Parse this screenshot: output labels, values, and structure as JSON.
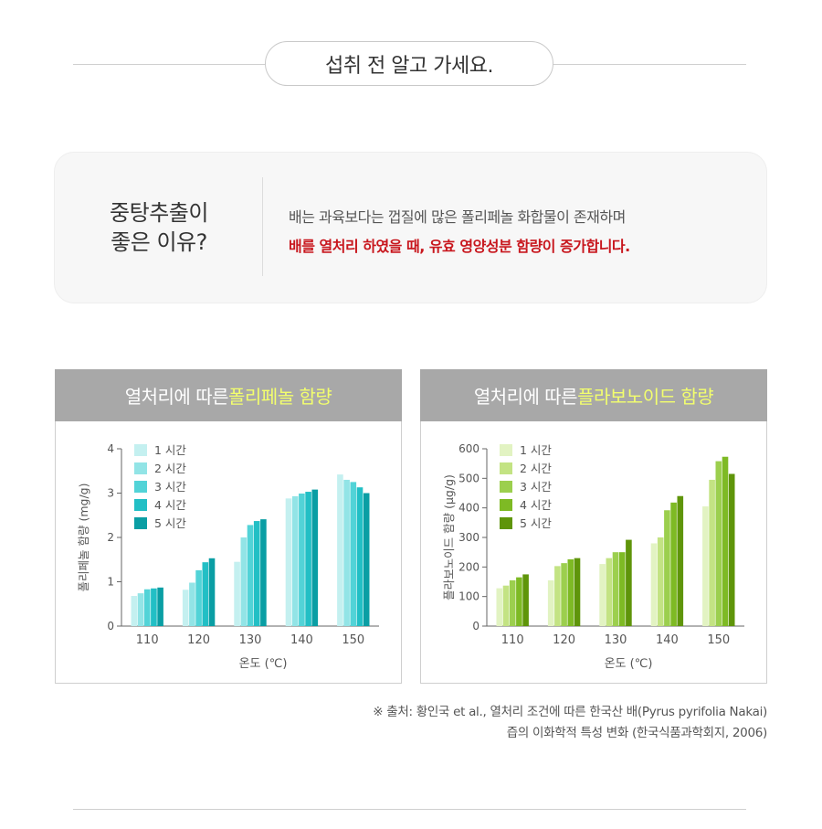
{
  "header": {
    "title": "섭취 전 알고 가세요."
  },
  "info": {
    "question_line1": "중탕추출이",
    "question_line2": "좋은 이유?",
    "line1": "배는 과육보다는 껍질에 많은 폴리페놀 화합물이 존재하며",
    "line2": "배를 열처리 하였을 때, 유효 영양성분 함량이 증가합니다."
  },
  "colors": {
    "polyphenol": [
      "#c4f0f0",
      "#92e4e6",
      "#52d3d7",
      "#22bfc5",
      "#0a9ea4"
    ],
    "flavonoid": [
      "#e2f3c2",
      "#c3e383",
      "#9ccf4e",
      "#7eba24",
      "#5f950a"
    ],
    "highlight": "#f3ff6d",
    "emphasis": "#c8171e"
  },
  "chart_data": [
    {
      "type": "bar",
      "title_prefix": "열처리에 따른 ",
      "title_highlight": "폴리페놀 함량",
      "ylabel": "폴리페놀 함량 (mg/g)",
      "xlabel": "온도 (℃)",
      "ylim": [
        0,
        4
      ],
      "yticks": [
        "0",
        "1",
        "2",
        "3",
        "4"
      ],
      "categories": [
        "110",
        "120",
        "130",
        "140",
        "150"
      ],
      "legend_position": "top-left",
      "series": [
        {
          "name": "1 시간",
          "values": [
            0.68,
            0.82,
            1.45,
            2.88,
            3.42
          ]
        },
        {
          "name": "2 시간",
          "values": [
            0.74,
            0.98,
            2.0,
            2.93,
            3.3
          ]
        },
        {
          "name": "3 시간",
          "values": [
            0.83,
            1.26,
            2.28,
            2.99,
            3.25
          ]
        },
        {
          "name": "4 시간",
          "values": [
            0.85,
            1.44,
            2.37,
            3.03,
            3.13
          ]
        },
        {
          "name": "5 시간",
          "values": [
            0.87,
            1.53,
            2.41,
            3.08,
            3.0
          ]
        }
      ]
    },
    {
      "type": "bar",
      "title_prefix": "열처리에 따른 ",
      "title_highlight": "플라보노이드 함량",
      "ylabel": "플라보노이드 함량 (μg/g)",
      "xlabel": "온도 (℃)",
      "ylim": [
        0,
        600
      ],
      "yticks": [
        "0",
        "100",
        "200",
        "300",
        "400",
        "500",
        "600"
      ],
      "categories": [
        "110",
        "120",
        "130",
        "140",
        "150"
      ],
      "legend_position": "top-left",
      "series": [
        {
          "name": "1 시간",
          "values": [
            128,
            155,
            210,
            280,
            405
          ]
        },
        {
          "name": "2 시간",
          "values": [
            137,
            203,
            230,
            300,
            495
          ]
        },
        {
          "name": "3 시간",
          "values": [
            155,
            213,
            250,
            392,
            558
          ]
        },
        {
          "name": "4 시간",
          "values": [
            165,
            226,
            250,
            418,
            573
          ]
        },
        {
          "name": "5 시간",
          "values": [
            175,
            230,
            292,
            440,
            515
          ]
        }
      ]
    }
  ],
  "source": {
    "line1": "※ 출처: 황인국 et al., 열처리 조건에 따른 한국산 배(Pyrus pyrifolia Nakai)",
    "line2": "즙의 이화학적 특성 변화 (한국식품과학회지, 2006)"
  }
}
